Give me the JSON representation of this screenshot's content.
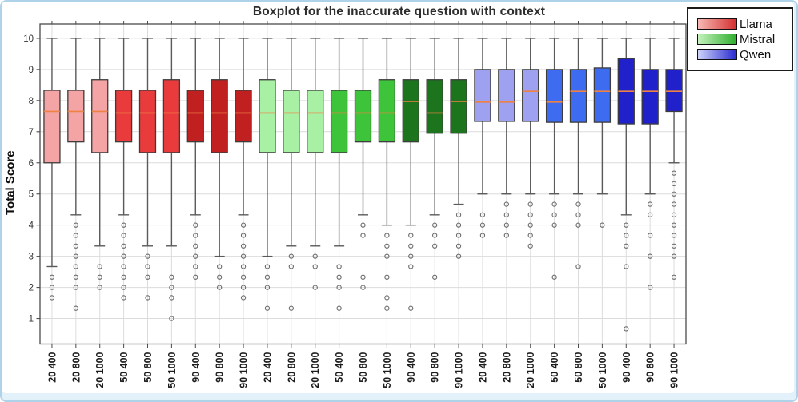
{
  "page": {
    "background": "#e3f1fa",
    "border_color": "#aed2e8",
    "plot_background": "#ffffff",
    "grid_color": "#dcdcdc",
    "frame_color": "#4a4a4a",
    "tick_color": "#4a4a4a",
    "whisker_color": "#5a5a5a",
    "box_edge_color": "#3c3c3c",
    "median_color": "#ee8144",
    "flier_color": "#6a6a6a",
    "title_color": "#2d2d2d",
    "ytick_label_color": "#333333",
    "xtick_label_color": "#1c1c1c"
  },
  "header": {
    "title": "Boxplot for the inaccurate question with context"
  },
  "axes": {
    "ylabel": "Total Score",
    "yticks": [
      1,
      2,
      3,
      4,
      5,
      6,
      7,
      8,
      9,
      10
    ],
    "ylim": [
      0.18,
      10.46
    ],
    "xticklabels": [
      "20 400",
      "20 800",
      "20 1000",
      "50 400",
      "50 800",
      "50 1000",
      "90 400",
      "90 800",
      "90 1000",
      "20 400",
      "20 800",
      "20 1000",
      "50 400",
      "50 800",
      "50 1000",
      "90 400",
      "90 800",
      "90 1000",
      "20 400",
      "20 800",
      "20 1000",
      "50 400",
      "50 800",
      "50 1000",
      "90 400",
      "90 800",
      "90 1000"
    ]
  },
  "legend": {
    "items": [
      {
        "label": "Llama",
        "gradient": [
          "#f7b9b4",
          "#d32f2f"
        ]
      },
      {
        "label": "Mistral",
        "gradient": [
          "#c5f2bd",
          "#2eae2e"
        ]
      },
      {
        "label": "Qwen",
        "gradient": [
          "#cdd3f8",
          "#2a2ad0"
        ]
      }
    ]
  },
  "chart_data": {
    "type": "boxplot",
    "title": "Boxplot for the inaccurate question with context",
    "xlabel": "",
    "ylabel": "Total Score",
    "ylim": [
      0.18,
      10.46
    ],
    "grid": true,
    "legend_position": "top-right",
    "groups": [
      {
        "name": "Llama",
        "shades": {
          "light": "#f4a4a4",
          "mid": "#e93b3b",
          "dark": "#c12020"
        },
        "boxes": [
          {
            "label": "20 400",
            "shade": "light",
            "whislo": 2.67,
            "q1": 6.0,
            "med": 7.65,
            "q3": 8.33,
            "whishi": 10,
            "fliers": [
              2.33,
              2.0,
              1.67
            ]
          },
          {
            "label": "20 800",
            "shade": "light",
            "whislo": 4.33,
            "q1": 6.67,
            "med": 7.65,
            "q3": 8.33,
            "whishi": 10,
            "fliers": [
              4.0,
              3.67,
              3.33,
              3.0,
              2.67,
              2.33,
              2.0,
              1.33
            ]
          },
          {
            "label": "20 1000",
            "shade": "light",
            "whislo": 3.33,
            "q1": 6.33,
            "med": 7.65,
            "q3": 8.67,
            "whishi": 10,
            "fliers": [
              2.67,
              2.33,
              2.0
            ]
          },
          {
            "label": "50 400",
            "shade": "mid",
            "whislo": 4.33,
            "q1": 6.67,
            "med": 7.6,
            "q3": 8.33,
            "whishi": 10,
            "fliers": [
              4.0,
              3.67,
              3.33,
              3.0,
              2.67,
              2.33,
              2.0,
              1.67
            ]
          },
          {
            "label": "50 800",
            "shade": "mid",
            "whislo": 3.33,
            "q1": 6.33,
            "med": 7.6,
            "q3": 8.33,
            "whishi": 10,
            "fliers": [
              3.0,
              2.67,
              2.33,
              1.67
            ]
          },
          {
            "label": "50 1000",
            "shade": "mid",
            "whislo": 3.33,
            "q1": 6.33,
            "med": 7.6,
            "q3": 8.67,
            "whishi": 10,
            "fliers": [
              2.33,
              2.0,
              1.67,
              1.0
            ]
          },
          {
            "label": "90 400",
            "shade": "dark",
            "whislo": 4.33,
            "q1": 6.67,
            "med": 7.6,
            "q3": 8.33,
            "whishi": 10,
            "fliers": [
              4.0,
              3.67,
              3.33,
              3.0,
              2.67,
              2.33
            ]
          },
          {
            "label": "90 800",
            "shade": "dark",
            "whislo": 3.0,
            "q1": 6.33,
            "med": 7.6,
            "q3": 8.67,
            "whishi": 10,
            "fliers": [
              2.67,
              2.33,
              2.0
            ]
          },
          {
            "label": "90 1000",
            "shade": "dark",
            "whislo": 4.33,
            "q1": 6.67,
            "med": 7.6,
            "q3": 8.33,
            "whishi": 10,
            "fliers": [
              4.0,
              3.67,
              3.33,
              3.0,
              2.67,
              2.33,
              2.0,
              1.67
            ]
          }
        ]
      },
      {
        "name": "Mistral",
        "shades": {
          "light": "#a8f0a3",
          "mid": "#3ec43a",
          "dark": "#1c751c"
        },
        "boxes": [
          {
            "label": "20 400",
            "shade": "light",
            "whislo": 3.0,
            "q1": 6.33,
            "med": 7.6,
            "q3": 8.67,
            "whishi": 10,
            "fliers": [
              2.67,
              2.33,
              2.0,
              1.33
            ]
          },
          {
            "label": "20 800",
            "shade": "light",
            "whislo": 3.33,
            "q1": 6.33,
            "med": 7.6,
            "q3": 8.33,
            "whishi": 10,
            "fliers": [
              3.0,
              2.67,
              1.33
            ]
          },
          {
            "label": "20 1000",
            "shade": "light",
            "whislo": 3.33,
            "q1": 6.33,
            "med": 7.6,
            "q3": 8.33,
            "whishi": 10,
            "fliers": [
              3.0,
              2.67,
              2.0
            ]
          },
          {
            "label": "50 400",
            "shade": "mid",
            "whislo": 3.33,
            "q1": 6.33,
            "med": 7.6,
            "q3": 8.33,
            "whishi": 10,
            "fliers": [
              2.67,
              2.33,
              2.0,
              1.33
            ]
          },
          {
            "label": "50 800",
            "shade": "mid",
            "whislo": 4.33,
            "q1": 6.67,
            "med": 7.6,
            "q3": 8.33,
            "whishi": 10,
            "fliers": [
              4.0,
              3.67,
              2.33,
              2.0
            ]
          },
          {
            "label": "50 1000",
            "shade": "mid",
            "whislo": 4.0,
            "q1": 6.67,
            "med": 7.6,
            "q3": 8.67,
            "whishi": 10,
            "fliers": [
              3.67,
              3.33,
              3.0,
              2.33,
              1.67,
              1.33
            ]
          },
          {
            "label": "90 400",
            "shade": "dark",
            "whislo": 4.0,
            "q1": 6.67,
            "med": 7.97,
            "q3": 8.67,
            "whishi": 10,
            "fliers": [
              3.67,
              3.33,
              3.0,
              2.67,
              1.33
            ]
          },
          {
            "label": "90 800",
            "shade": "dark",
            "whislo": 4.33,
            "q1": 6.95,
            "med": 7.6,
            "q3": 8.67,
            "whishi": 10,
            "fliers": [
              4.0,
              3.67,
              3.33,
              2.33
            ]
          },
          {
            "label": "90 1000",
            "shade": "dark",
            "whislo": 4.67,
            "q1": 6.95,
            "med": 7.97,
            "q3": 8.67,
            "whishi": 10,
            "fliers": [
              4.33,
              4.0,
              3.67,
              3.33,
              3.0
            ]
          }
        ]
      },
      {
        "name": "Qwen",
        "shades": {
          "light": "#9da1f0",
          "mid": "#3e6cf0",
          "dark": "#2121cb"
        },
        "boxes": [
          {
            "label": "20 400",
            "shade": "light",
            "whislo": 5.0,
            "q1": 7.33,
            "med": 7.95,
            "q3": 9.0,
            "whishi": 10,
            "fliers": [
              4.33,
              4.0,
              3.67
            ]
          },
          {
            "label": "20 800",
            "shade": "light",
            "whislo": 5.0,
            "q1": 7.33,
            "med": 7.95,
            "q3": 9.0,
            "whishi": 10,
            "fliers": [
              4.67,
              4.33,
              4.0,
              3.67
            ]
          },
          {
            "label": "20 1000",
            "shade": "light",
            "whislo": 5.0,
            "q1": 7.33,
            "med": 8.3,
            "q3": 9.0,
            "whishi": 10,
            "fliers": [
              4.67,
              4.33,
              4.0,
              3.67,
              3.33
            ]
          },
          {
            "label": "50 400",
            "shade": "mid",
            "whislo": 5.0,
            "q1": 7.3,
            "med": 7.95,
            "q3": 9.0,
            "whishi": 10,
            "fliers": [
              4.67,
              4.33,
              4.0,
              2.33
            ]
          },
          {
            "label": "50 800",
            "shade": "mid",
            "whislo": 5.0,
            "q1": 7.3,
            "med": 8.3,
            "q3": 9.0,
            "whishi": 10,
            "fliers": [
              4.67,
              4.33,
              4.0,
              2.67
            ]
          },
          {
            "label": "50 1000",
            "shade": "mid",
            "whislo": 5.0,
            "q1": 7.3,
            "med": 8.3,
            "q3": 9.05,
            "whishi": 10,
            "fliers": [
              4.0
            ]
          },
          {
            "label": "90 400",
            "shade": "dark",
            "whislo": 4.33,
            "q1": 7.25,
            "med": 8.3,
            "q3": 9.35,
            "whishi": 10,
            "fliers": [
              4.0,
              3.67,
              3.33,
              2.67,
              0.67
            ]
          },
          {
            "label": "90 800",
            "shade": "dark",
            "whislo": 5.0,
            "q1": 7.25,
            "med": 8.3,
            "q3": 9.0,
            "whishi": 10,
            "fliers": [
              4.67,
              4.33,
              3.67,
              3.0,
              2.0
            ]
          },
          {
            "label": "90 1000",
            "shade": "dark",
            "whislo": 6.0,
            "q1": 7.65,
            "med": 8.3,
            "q3": 9.0,
            "whishi": 10,
            "fliers": [
              5.67,
              5.33,
              5.0,
              4.67,
              4.33,
              4.0,
              3.67,
              3.33,
              3.0,
              2.33
            ]
          }
        ]
      }
    ]
  }
}
